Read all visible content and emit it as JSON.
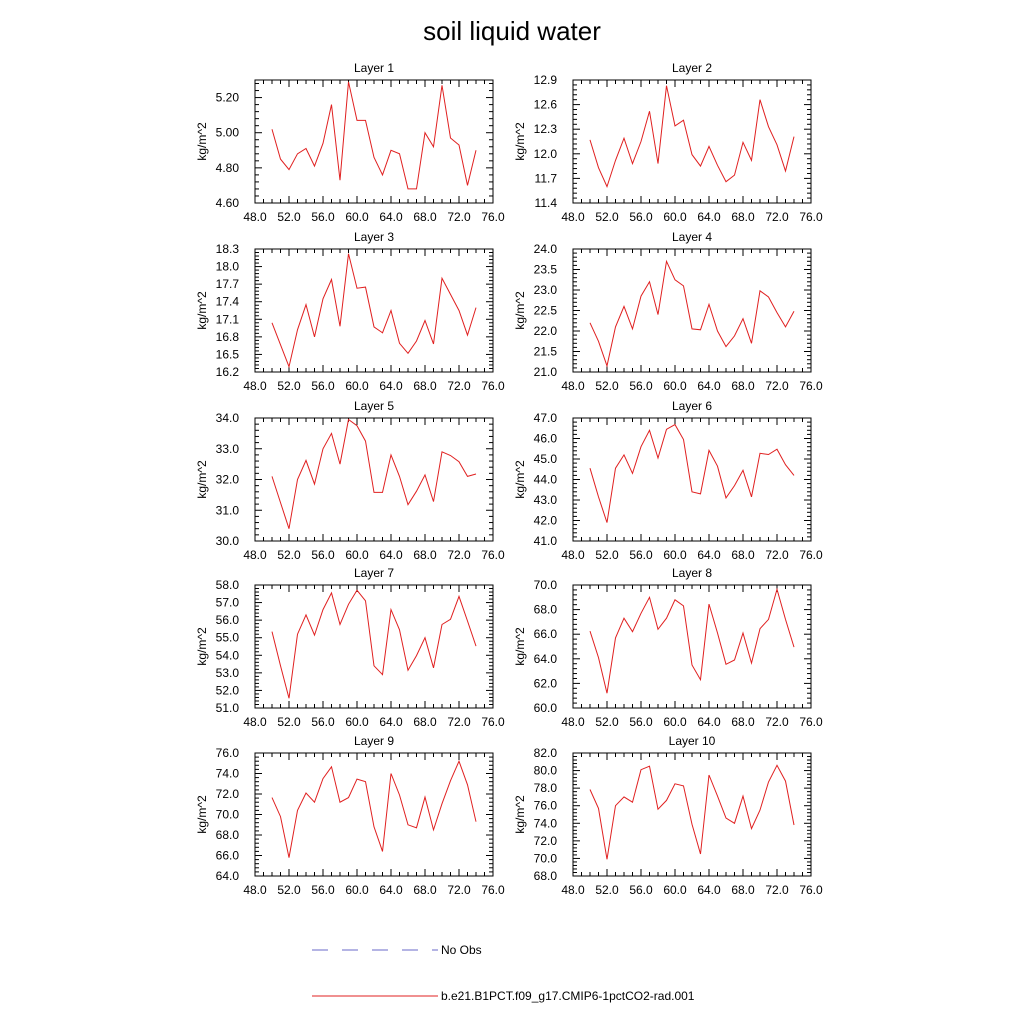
{
  "figure": {
    "title": "soil liquid water",
    "legend": [
      {
        "label": "No Obs",
        "color": "#6a6ac8",
        "style": "dashed"
      },
      {
        "label": "b.e21.B1PCT.f09_g17.CMIP6-1pctCO2-rad.001",
        "color": "#e02020",
        "style": "solid"
      }
    ]
  },
  "chart_data": [
    {
      "type": "line",
      "title": "Layer 1",
      "ylabel": "kg/m^2",
      "xlim": [
        48,
        76
      ],
      "ylim": [
        4.6,
        5.3
      ],
      "xticks": [
        48,
        52,
        56,
        60,
        64,
        68,
        72,
        76
      ],
      "xtick_labels": [
        "48.0",
        "52.0",
        "56.0",
        "60.0",
        "64.0",
        "68.0",
        "72.0",
        "76.0"
      ],
      "yticks": [
        4.6,
        4.8,
        5.0,
        5.2
      ],
      "ytick_labels": [
        "4.60",
        "4.80",
        "5.00",
        "5.20"
      ],
      "series": [
        {
          "color": "#e02020",
          "x": [
            50,
            51,
            52,
            53,
            54,
            55,
            56,
            57,
            58,
            59,
            60,
            61,
            62,
            63,
            64,
            65,
            66,
            67,
            68,
            69,
            70,
            71,
            72,
            73,
            74
          ],
          "values": [
            5.02,
            4.85,
            4.79,
            4.88,
            4.91,
            4.81,
            4.94,
            5.16,
            4.73,
            5.29,
            5.07,
            5.07,
            4.86,
            4.76,
            4.9,
            4.88,
            4.68,
            4.68,
            5.0,
            4.92,
            5.27,
            4.97,
            4.93,
            4.7,
            4.9
          ]
        }
      ]
    },
    {
      "type": "line",
      "title": "Layer 2",
      "ylabel": "kg/m^2",
      "xlim": [
        48,
        76
      ],
      "ylim": [
        11.4,
        12.9
      ],
      "xticks": [
        48,
        52,
        56,
        60,
        64,
        68,
        72,
        76
      ],
      "xtick_labels": [
        "48.0",
        "52.0",
        "56.0",
        "60.0",
        "64.0",
        "68.0",
        "72.0",
        "76.0"
      ],
      "yticks": [
        11.4,
        11.7,
        12.0,
        12.3,
        12.6,
        12.9
      ],
      "ytick_labels": [
        "11.4",
        "11.7",
        "12.0",
        "12.3",
        "12.6",
        "12.9"
      ],
      "series": [
        {
          "color": "#e02020",
          "x": [
            50,
            51,
            52,
            53,
            54,
            55,
            56,
            57,
            58,
            59,
            60,
            61,
            62,
            63,
            64,
            65,
            66,
            67,
            68,
            69,
            70,
            71,
            72,
            73,
            74
          ],
          "values": [
            12.17,
            11.83,
            11.6,
            11.92,
            12.19,
            11.88,
            12.15,
            12.52,
            11.88,
            12.83,
            12.34,
            12.41,
            11.99,
            11.85,
            12.09,
            11.86,
            11.66,
            11.74,
            12.14,
            11.92,
            12.66,
            12.33,
            12.11,
            11.79,
            12.21
          ]
        }
      ]
    },
    {
      "type": "line",
      "title": "Layer 3",
      "ylabel": "kg/m^2",
      "xlim": [
        48,
        76
      ],
      "ylim": [
        16.2,
        18.3
      ],
      "xticks": [
        48,
        52,
        56,
        60,
        64,
        68,
        72,
        76
      ],
      "xtick_labels": [
        "48.0",
        "52.0",
        "56.0",
        "60.0",
        "64.0",
        "68.0",
        "72.0",
        "76.0"
      ],
      "yticks": [
        16.2,
        16.5,
        16.8,
        17.1,
        17.4,
        17.7,
        18.0,
        18.3
      ],
      "ytick_labels": [
        "16.2",
        "16.5",
        "16.8",
        "17.1",
        "17.4",
        "17.7",
        "18.0",
        "18.3"
      ],
      "series": [
        {
          "color": "#e02020",
          "x": [
            50,
            52,
            53,
            54,
            55,
            56,
            57,
            58,
            59,
            60,
            61,
            62,
            63,
            64,
            65,
            66,
            67,
            68,
            69,
            70,
            72,
            73,
            74
          ],
          "values": [
            17.04,
            16.29,
            16.92,
            17.35,
            16.8,
            17.45,
            17.78,
            16.98,
            18.22,
            17.63,
            17.65,
            16.97,
            16.87,
            17.25,
            16.69,
            16.52,
            16.73,
            17.08,
            16.68,
            17.8,
            17.25,
            16.83,
            17.3
          ]
        }
      ]
    },
    {
      "type": "line",
      "title": "Layer 4",
      "ylabel": "kg/m^2",
      "xlim": [
        48,
        76
      ],
      "ylim": [
        21.0,
        24.0
      ],
      "xticks": [
        48,
        52,
        56,
        60,
        64,
        68,
        72,
        76
      ],
      "xtick_labels": [
        "48.0",
        "52.0",
        "56.0",
        "60.0",
        "64.0",
        "68.0",
        "72.0",
        "76.0"
      ],
      "yticks": [
        21.0,
        21.5,
        22.0,
        22.5,
        23.0,
        23.5,
        24.0
      ],
      "ytick_labels": [
        "21.0",
        "21.5",
        "22.0",
        "22.5",
        "23.0",
        "23.5",
        "24.0"
      ],
      "series": [
        {
          "color": "#e02020",
          "x": [
            50,
            51,
            52,
            53,
            54,
            55,
            56,
            57,
            58,
            59,
            60,
            61,
            62,
            63,
            64,
            65,
            66,
            67,
            68,
            69,
            70,
            71,
            72,
            73,
            74
          ],
          "values": [
            22.2,
            21.75,
            21.15,
            22.1,
            22.6,
            22.05,
            22.85,
            23.2,
            22.4,
            23.7,
            23.25,
            23.1,
            22.05,
            22.03,
            22.65,
            22.0,
            21.62,
            21.88,
            22.3,
            21.7,
            22.98,
            22.83,
            22.45,
            22.1,
            22.48
          ]
        }
      ]
    },
    {
      "type": "line",
      "title": "Layer 5",
      "ylabel": "kg/m^2",
      "xlim": [
        48,
        76
      ],
      "ylim": [
        30.0,
        34.0
      ],
      "xticks": [
        48,
        52,
        56,
        60,
        64,
        68,
        72,
        76
      ],
      "xtick_labels": [
        "48.0",
        "52.0",
        "56.0",
        "60.0",
        "64.0",
        "68.0",
        "72.0",
        "76.0"
      ],
      "yticks": [
        30.0,
        31.0,
        32.0,
        33.0,
        34.0
      ],
      "ytick_labels": [
        "30.0",
        "31.0",
        "32.0",
        "33.0",
        "34.0"
      ],
      "series": [
        {
          "color": "#e02020",
          "x": [
            50,
            51,
            52,
            53,
            54,
            55,
            56,
            57,
            58,
            59,
            60,
            61,
            62,
            63,
            64,
            65,
            66,
            67,
            68,
            69,
            70,
            71,
            72,
            73,
            74
          ],
          "values": [
            32.1,
            31.25,
            30.4,
            32.0,
            32.62,
            31.85,
            33.0,
            33.5,
            32.5,
            33.95,
            33.75,
            33.25,
            31.58,
            31.58,
            32.8,
            32.1,
            31.18,
            31.62,
            32.15,
            31.28,
            32.9,
            32.78,
            32.58,
            32.1,
            32.18
          ]
        }
      ]
    },
    {
      "type": "line",
      "title": "Layer 6",
      "ylabel": "kg/m^2",
      "xlim": [
        48,
        76
      ],
      "ylim": [
        41.0,
        47.0
      ],
      "xticks": [
        48,
        52,
        56,
        60,
        64,
        68,
        72,
        76
      ],
      "xtick_labels": [
        "48.0",
        "52.0",
        "56.0",
        "60.0",
        "64.0",
        "68.0",
        "72.0",
        "76.0"
      ],
      "yticks": [
        41.0,
        42.0,
        43.0,
        44.0,
        45.0,
        46.0,
        47.0
      ],
      "ytick_labels": [
        "41.0",
        "42.0",
        "43.0",
        "44.0",
        "45.0",
        "46.0",
        "47.0"
      ],
      "series": [
        {
          "color": "#e02020",
          "x": [
            50,
            51,
            52,
            53,
            54,
            55,
            56,
            57,
            58,
            59,
            60,
            61,
            62,
            63,
            64,
            65,
            66,
            67,
            68,
            69,
            70,
            71,
            72,
            73,
            74
          ],
          "values": [
            44.55,
            43.15,
            41.9,
            44.55,
            45.2,
            44.3,
            45.6,
            46.4,
            45.05,
            46.45,
            46.68,
            45.95,
            43.4,
            43.3,
            45.42,
            44.65,
            43.1,
            43.7,
            44.45,
            43.15,
            45.28,
            45.22,
            45.48,
            44.72,
            44.2
          ]
        }
      ]
    },
    {
      "type": "line",
      "title": "Layer 7",
      "ylabel": "kg/m^2",
      "xlim": [
        48,
        76
      ],
      "ylim": [
        51.0,
        58.0
      ],
      "xticks": [
        48,
        52,
        56,
        60,
        64,
        68,
        72,
        76
      ],
      "xtick_labels": [
        "48.0",
        "52.0",
        "56.0",
        "60.0",
        "64.0",
        "68.0",
        "72.0",
        "76.0"
      ],
      "yticks": [
        51.0,
        52.0,
        53.0,
        54.0,
        55.0,
        56.0,
        57.0,
        58.0
      ],
      "ytick_labels": [
        "51.0",
        "52.0",
        "53.0",
        "54.0",
        "55.0",
        "56.0",
        "57.0",
        "58.0"
      ],
      "series": [
        {
          "color": "#e02020",
          "x": [
            50,
            51,
            52,
            53,
            54,
            55,
            56,
            57,
            58,
            59,
            60,
            61,
            62,
            63,
            64,
            65,
            66,
            67,
            68,
            69,
            70,
            71,
            72,
            73,
            74
          ],
          "values": [
            55.35,
            53.4,
            51.55,
            55.2,
            56.3,
            55.15,
            56.6,
            57.55,
            55.75,
            56.9,
            57.7,
            57.1,
            53.4,
            52.9,
            56.6,
            55.45,
            53.15,
            53.98,
            55.0,
            53.28,
            55.75,
            56.05,
            57.35,
            55.95,
            54.52
          ]
        }
      ]
    },
    {
      "type": "line",
      "title": "Layer 8",
      "ylabel": "kg/m^2",
      "xlim": [
        48,
        76
      ],
      "ylim": [
        60.0,
        70.0
      ],
      "xticks": [
        48,
        52,
        56,
        60,
        64,
        68,
        72,
        76
      ],
      "xtick_labels": [
        "48.0",
        "52.0",
        "56.0",
        "60.0",
        "64.0",
        "68.0",
        "72.0",
        "76.0"
      ],
      "yticks": [
        60.0,
        62.0,
        64.0,
        66.0,
        68.0,
        70.0
      ],
      "ytick_labels": [
        "60.0",
        "62.0",
        "64.0",
        "66.0",
        "68.0",
        "70.0"
      ],
      "series": [
        {
          "color": "#e02020",
          "x": [
            50,
            51,
            52,
            53,
            54,
            55,
            56,
            57,
            58,
            59,
            60,
            61,
            62,
            63,
            64,
            65,
            66,
            67,
            68,
            69,
            70,
            71,
            72,
            73,
            74
          ],
          "values": [
            66.25,
            64.1,
            61.2,
            65.7,
            67.3,
            66.2,
            67.7,
            69.0,
            66.4,
            67.3,
            68.8,
            68.3,
            63.5,
            62.3,
            68.45,
            66.1,
            63.55,
            63.9,
            66.1,
            63.65,
            66.45,
            67.2,
            69.65,
            67.2,
            64.95
          ]
        }
      ]
    },
    {
      "type": "line",
      "title": "Layer 9",
      "ylabel": "kg/m^2",
      "xlim": [
        48,
        76
      ],
      "ylim": [
        64.0,
        76.0
      ],
      "xticks": [
        48,
        52,
        56,
        60,
        64,
        68,
        72,
        76
      ],
      "xtick_labels": [
        "48.0",
        "52.0",
        "56.0",
        "60.0",
        "64.0",
        "68.0",
        "72.0",
        "76.0"
      ],
      "yticks": [
        64.0,
        66.0,
        68.0,
        70.0,
        72.0,
        74.0,
        76.0
      ],
      "ytick_labels": [
        "64.0",
        "66.0",
        "68.0",
        "70.0",
        "72.0",
        "74.0",
        "76.0"
      ],
      "series": [
        {
          "color": "#e02020",
          "x": [
            50,
            51,
            52,
            53,
            54,
            55,
            56,
            57,
            58,
            59,
            60,
            61,
            62,
            63,
            64,
            65,
            66,
            67,
            68,
            69,
            70,
            71,
            72,
            73,
            74
          ],
          "values": [
            71.65,
            69.8,
            65.8,
            70.4,
            72.1,
            71.2,
            73.5,
            74.65,
            71.2,
            71.65,
            73.45,
            73.2,
            68.8,
            66.4,
            74.0,
            71.9,
            69.0,
            68.7,
            71.7,
            68.5,
            71.05,
            73.3,
            75.2,
            72.9,
            69.3
          ]
        }
      ]
    },
    {
      "type": "line",
      "title": "Layer 10",
      "ylabel": "kg/m^2",
      "xlim": [
        48,
        76
      ],
      "ylim": [
        68.0,
        82.0
      ],
      "xticks": [
        48,
        52,
        56,
        60,
        64,
        68,
        72,
        76
      ],
      "xtick_labels": [
        "48.0",
        "52.0",
        "56.0",
        "60.0",
        "64.0",
        "68.0",
        "72.0",
        "76.0"
      ],
      "yticks": [
        68.0,
        70.0,
        72.0,
        74.0,
        76.0,
        78.0,
        80.0,
        82.0
      ],
      "ytick_labels": [
        "68.0",
        "70.0",
        "72.0",
        "74.0",
        "76.0",
        "78.0",
        "80.0",
        "82.0"
      ],
      "series": [
        {
          "color": "#e02020",
          "x": [
            50,
            51,
            52,
            53,
            54,
            55,
            56,
            57,
            58,
            59,
            60,
            61,
            62,
            63,
            64,
            65,
            66,
            67,
            68,
            69,
            70,
            71,
            72,
            73,
            74
          ],
          "values": [
            77.85,
            75.7,
            69.9,
            76.0,
            77.0,
            76.4,
            80.1,
            80.5,
            75.6,
            76.6,
            78.5,
            78.25,
            73.9,
            70.5,
            79.5,
            77.1,
            74.6,
            74.0,
            77.1,
            73.4,
            75.5,
            78.7,
            80.6,
            78.8,
            73.8
          ]
        }
      ]
    }
  ]
}
